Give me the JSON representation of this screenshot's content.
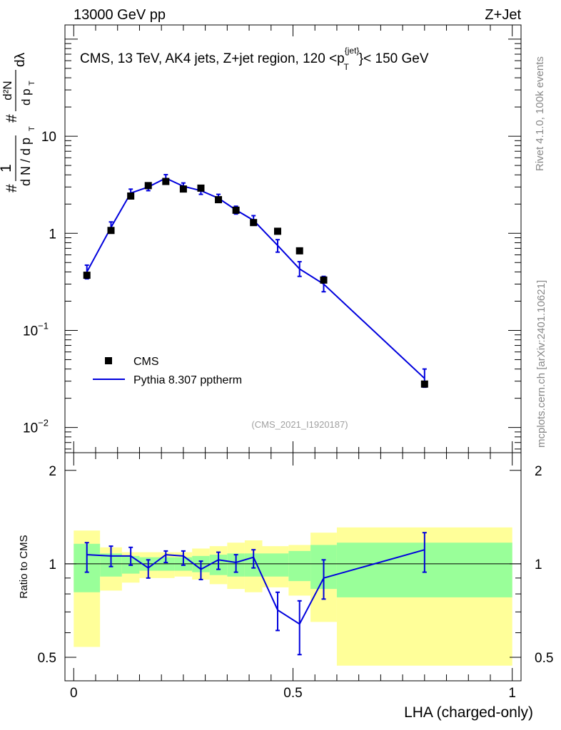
{
  "header": {
    "energy": "13000 GeV pp",
    "process": "Z+Jet"
  },
  "side_labels": {
    "rivet": "Rivet 4.1.0,  100k events",
    "mcplots": "mcplots.cern.ch [arXiv:2401.10621]"
  },
  "colors": {
    "mc": "#0000dd",
    "data": "#000000",
    "band_inner": "#99ff99",
    "band_outer": "#ffff99"
  },
  "chart_data": [
    {
      "type": "scatter",
      "panel": "main",
      "title": "CMS, 13 TeV, AK4 jets, Z+jet region, 120 <p_T^{jet}< 150 GeV",
      "title_text": {
        "before": "CMS, 13 TeV, AK4 jets, Z+jet region, 120 <p",
        "superscript": "{jet}",
        "subscript": "T",
        "after": "}< 150 GeV"
      },
      "ylabel_text": {
        "prefix": "#",
        "fraction_num": "1",
        "fraction_den": "d N / d p",
        "sub1": "T",
        "hash": "#",
        "inner_num": "d²N",
        "inner_den": "d p",
        "sub2": "T",
        "suffix": "dλ"
      },
      "yscale": "log",
      "ylim": [
        0.0055,
        140
      ],
      "ytick_labels": [
        {
          "value": 10,
          "text": "10"
        },
        {
          "value": 1,
          "text": "1"
        },
        {
          "value": 0.1,
          "base": "10",
          "exp": "−1"
        },
        {
          "value": 0.01,
          "base": "10",
          "exp": "−2"
        }
      ],
      "watermark": "(CMS_2021_I1920187)",
      "legend_position": "bottom-left",
      "series": [
        {
          "name": "CMS",
          "style": "markers",
          "x": [
            0.03,
            0.085,
            0.13,
            0.17,
            0.21,
            0.25,
            0.29,
            0.33,
            0.37,
            0.41,
            0.465,
            0.515,
            0.57,
            0.8
          ],
          "y": [
            0.37,
            1.07,
            2.42,
            3.1,
            3.42,
            2.86,
            2.92,
            2.22,
            1.73,
            1.29,
            1.05,
            0.66,
            0.33,
            0.028
          ]
        },
        {
          "name": "Pythia 8.307 pptherm",
          "style": "line",
          "x": [
            0.03,
            0.085,
            0.13,
            0.17,
            0.21,
            0.25,
            0.29,
            0.33,
            0.37,
            0.41,
            0.465,
            0.515,
            0.57,
            0.8
          ],
          "y": [
            0.4,
            1.15,
            2.6,
            3.0,
            3.7,
            3.05,
            2.75,
            2.3,
            1.74,
            1.36,
            0.75,
            0.43,
            0.3,
            0.032
          ],
          "yerr_low": [
            0.34,
            1.01,
            2.36,
            2.75,
            3.4,
            2.82,
            2.52,
            2.1,
            1.58,
            1.21,
            0.64,
            0.36,
            0.25,
            0.026
          ],
          "yerr_high": [
            0.47,
            1.31,
            2.85,
            3.27,
            4.02,
            3.3,
            3.0,
            2.52,
            1.9,
            1.52,
            0.86,
            0.51,
            0.36,
            0.04
          ]
        }
      ]
    },
    {
      "type": "line",
      "panel": "ratio",
      "ylabel": "Ratio to CMS",
      "xlabel": "LHA (charged-only)",
      "xlim": [
        -0.02,
        1.02
      ],
      "ylim": [
        0.42,
        2.28
      ],
      "xticks": [
        0,
        0.5,
        1
      ],
      "xtick_labels": [
        "0",
        "0.5",
        "1"
      ],
      "yticks": [
        0.5,
        1,
        2
      ],
      "ytick_labels": [
        "0.5",
        "1",
        "2"
      ],
      "reference_line": 1,
      "bins": [
        0.0,
        0.06,
        0.11,
        0.15,
        0.19,
        0.23,
        0.27,
        0.31,
        0.35,
        0.39,
        0.43,
        0.49,
        0.54,
        0.6,
        1.0
      ],
      "band_inner_low": [
        0.81,
        0.91,
        0.93,
        0.95,
        0.95,
        0.95,
        0.94,
        0.92,
        0.91,
        0.91,
        0.91,
        0.88,
        0.83,
        0.78
      ],
      "band_inner_high": [
        1.16,
        1.08,
        1.06,
        1.05,
        1.05,
        1.05,
        1.06,
        1.07,
        1.08,
        1.08,
        1.08,
        1.1,
        1.15,
        1.17
      ],
      "band_outer_low": [
        0.54,
        0.82,
        0.87,
        0.9,
        0.9,
        0.91,
        0.89,
        0.86,
        0.83,
        0.81,
        0.84,
        0.79,
        0.65,
        0.47
      ],
      "band_outer_high": [
        1.28,
        1.13,
        1.09,
        1.09,
        1.09,
        1.09,
        1.12,
        1.14,
        1.17,
        1.19,
        1.14,
        1.15,
        1.26,
        1.31
      ],
      "series": [
        {
          "name": "Pythia 8.307 pptherm / CMS",
          "x": [
            0.03,
            0.085,
            0.13,
            0.17,
            0.21,
            0.25,
            0.29,
            0.33,
            0.37,
            0.41,
            0.465,
            0.515,
            0.57,
            0.8
          ],
          "y": [
            1.07,
            1.06,
            1.06,
            0.97,
            1.07,
            1.06,
            0.96,
            1.03,
            1.01,
            1.05,
            0.71,
            0.64,
            0.9,
            1.11
          ],
          "yerr_low": [
            0.94,
            0.98,
            0.99,
            0.9,
            1.01,
            0.99,
            0.89,
            0.96,
            0.94,
            0.97,
            0.61,
            0.51,
            0.77,
            0.94
          ],
          "yerr_high": [
            1.17,
            1.14,
            1.13,
            1.03,
            1.1,
            1.1,
            1.02,
            1.09,
            1.07,
            1.11,
            0.81,
            0.76,
            1.03,
            1.26
          ]
        }
      ]
    }
  ]
}
